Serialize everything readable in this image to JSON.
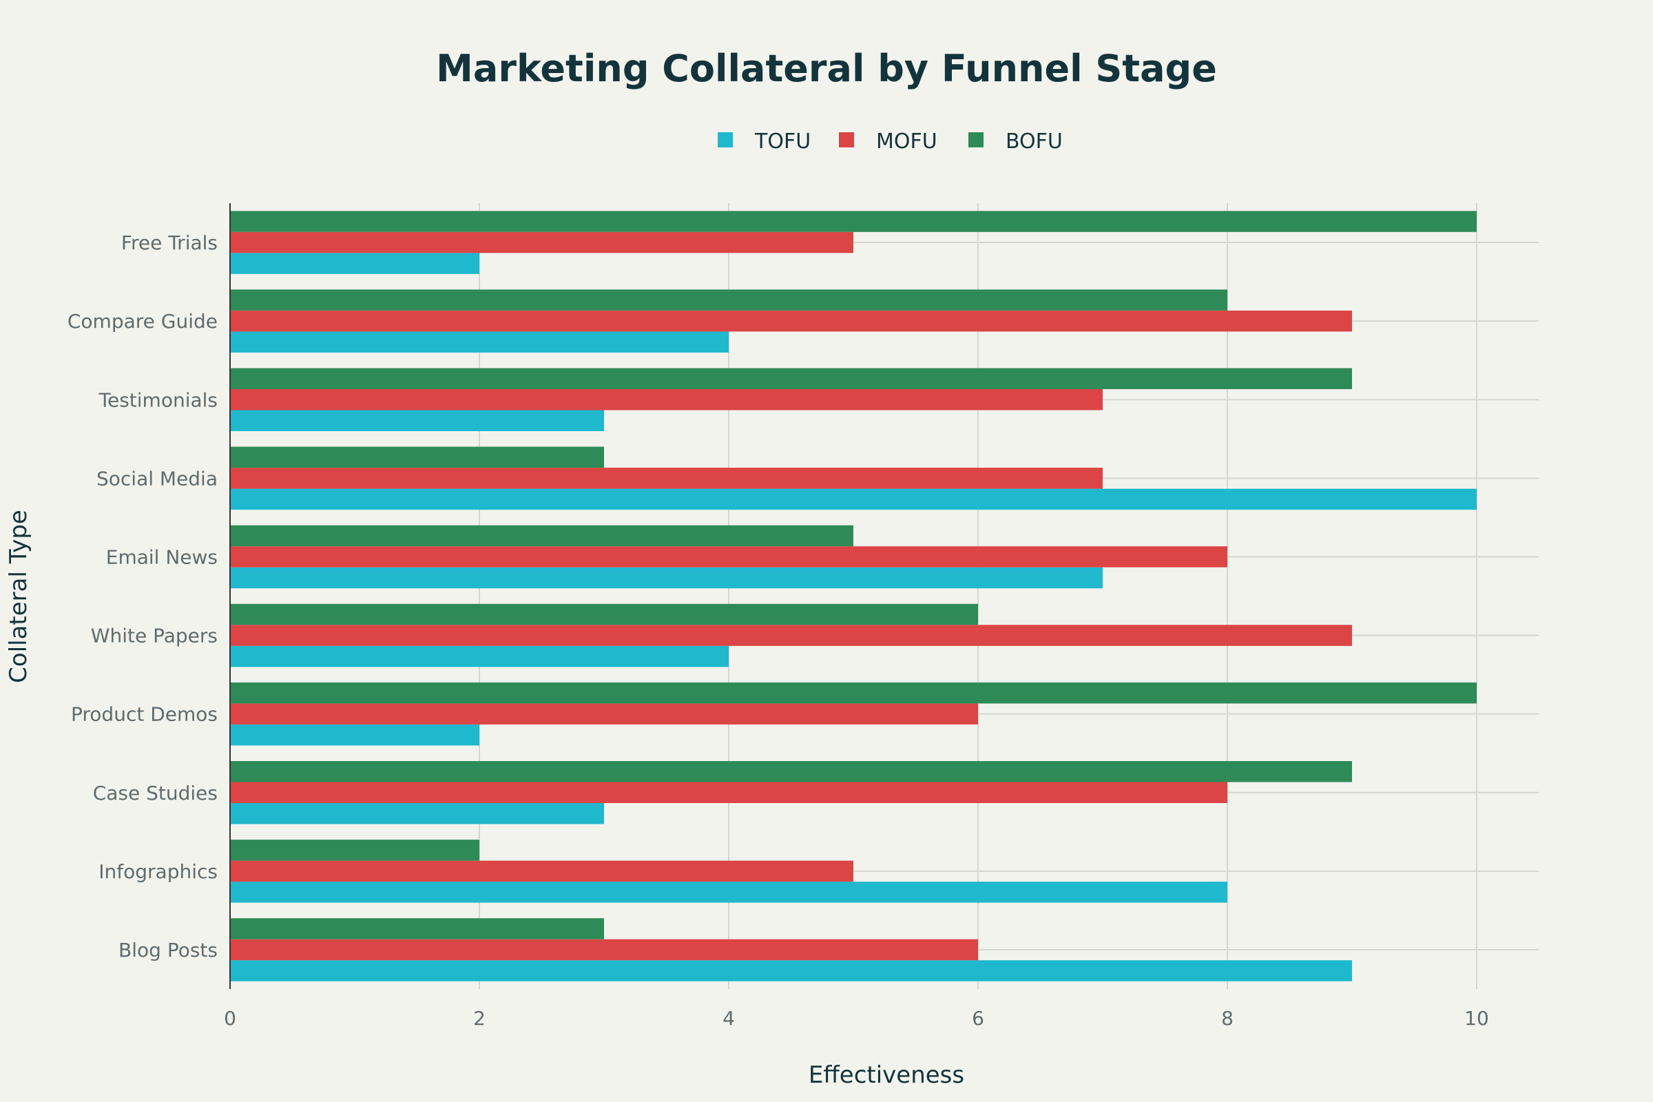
{
  "chart_data": {
    "type": "bar",
    "orientation": "horizontal",
    "title": "Marketing Collateral by Funnel Stage",
    "xlabel": "Effectiveness",
    "ylabel": "Collateral Type",
    "xlim": [
      0,
      10.5
    ],
    "xticks": [
      0,
      2,
      4,
      6,
      8,
      10
    ],
    "grid": true,
    "legend_position": "top-center",
    "categories": [
      "Blog Posts",
      "Infographics",
      "Case Studies",
      "Product Demos",
      "White Papers",
      "Email News",
      "Social Media",
      "Testimonials",
      "Compare Guide",
      "Free Trials"
    ],
    "series": [
      {
        "name": "TOFU",
        "color": "#1FB8CD",
        "values": [
          9,
          8,
          3,
          2,
          4,
          7,
          10,
          3,
          4,
          2
        ]
      },
      {
        "name": "MOFU",
        "color": "#DB4545",
        "values": [
          6,
          5,
          8,
          6,
          9,
          8,
          7,
          7,
          9,
          5
        ]
      },
      {
        "name": "BOFU",
        "color": "#2E8B57",
        "values": [
          3,
          2,
          9,
          10,
          6,
          5,
          3,
          9,
          8,
          10
        ]
      }
    ]
  }
}
